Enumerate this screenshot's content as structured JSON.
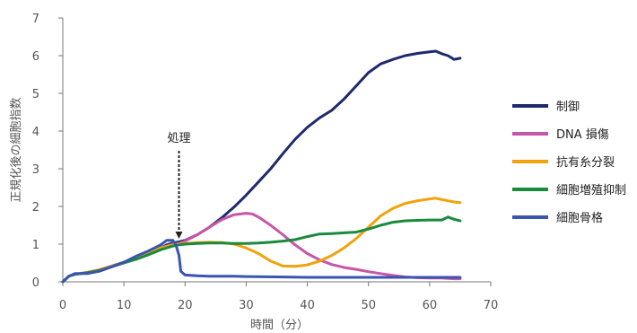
{
  "chart_data": {
    "type": "line",
    "title": "",
    "xlabel": "時間（分）",
    "ylabel": "正規化後の細胞指数",
    "xlim": [
      0,
      70
    ],
    "ylim": [
      0,
      7
    ],
    "xticks": [
      "0",
      "10",
      "20",
      "30",
      "40",
      "50",
      "60",
      "70"
    ],
    "yticks": [
      "0",
      "1",
      "2",
      "3",
      "4",
      "5",
      "6",
      "7"
    ],
    "grid": false,
    "legend_position": "right",
    "annotation": {
      "text": "処理",
      "x": 19
    },
    "series": [
      {
        "name": "制御",
        "color": "#1e2a6e",
        "x": [
          0,
          1,
          2,
          4,
          6,
          8,
          10,
          12,
          14,
          16,
          17,
          18,
          19,
          20,
          22,
          24,
          26,
          28,
          30,
          32,
          34,
          36,
          38,
          40,
          42,
          44,
          46,
          48,
          50,
          52,
          54,
          56,
          58,
          60,
          61,
          62,
          63,
          64,
          65
        ],
        "y": [
          0,
          0.15,
          0.2,
          0.25,
          0.32,
          0.42,
          0.52,
          0.65,
          0.78,
          0.9,
          0.98,
          1.03,
          1.06,
          1.1,
          1.25,
          1.45,
          1.7,
          1.98,
          2.3,
          2.65,
          3.0,
          3.4,
          3.78,
          4.1,
          4.35,
          4.55,
          4.85,
          5.2,
          5.55,
          5.78,
          5.9,
          6.0,
          6.06,
          6.1,
          6.12,
          6.05,
          6.0,
          5.9,
          5.93
        ]
      },
      {
        "name": "DNA 損傷",
        "color": "#c755a8",
        "x": [
          0,
          1,
          2,
          4,
          6,
          8,
          10,
          12,
          14,
          16,
          18,
          19,
          20,
          22,
          24,
          26,
          28,
          30,
          31,
          32,
          34,
          36,
          38,
          40,
          42,
          44,
          46,
          48,
          50,
          52,
          54,
          56,
          58,
          60,
          62,
          64,
          65
        ],
        "y": [
          0,
          0.15,
          0.2,
          0.25,
          0.32,
          0.42,
          0.52,
          0.65,
          0.78,
          0.9,
          1.0,
          1.02,
          1.08,
          1.25,
          1.45,
          1.65,
          1.78,
          1.82,
          1.8,
          1.72,
          1.5,
          1.25,
          0.98,
          0.75,
          0.58,
          0.46,
          0.38,
          0.33,
          0.27,
          0.22,
          0.17,
          0.13,
          0.11,
          0.1,
          0.1,
          0.08,
          0.08
        ]
      },
      {
        "name": "抗有糸分裂",
        "color": "#f0a30a",
        "x": [
          0,
          1,
          2,
          4,
          6,
          8,
          10,
          12,
          14,
          16,
          18,
          19,
          20,
          22,
          24,
          26,
          28,
          30,
          32,
          34,
          36,
          38,
          40,
          42,
          44,
          46,
          48,
          50,
          52,
          54,
          56,
          58,
          60,
          61,
          62,
          63,
          64,
          65
        ],
        "y": [
          0,
          0.15,
          0.2,
          0.25,
          0.32,
          0.42,
          0.52,
          0.65,
          0.78,
          0.9,
          0.98,
          1.0,
          1.02,
          1.04,
          1.05,
          1.04,
          1.0,
          0.9,
          0.75,
          0.55,
          0.42,
          0.41,
          0.45,
          0.55,
          0.7,
          0.9,
          1.15,
          1.45,
          1.75,
          1.95,
          2.08,
          2.15,
          2.2,
          2.22,
          2.18,
          2.15,
          2.12,
          2.1
        ]
      },
      {
        "name": "細胞増殖抑制",
        "color": "#1a8a3c",
        "x": [
          0,
          1,
          2,
          4,
          6,
          8,
          10,
          12,
          14,
          16,
          18,
          19,
          20,
          22,
          24,
          26,
          28,
          30,
          32,
          34,
          36,
          38,
          40,
          42,
          44,
          46,
          48,
          50,
          52,
          54,
          56,
          58,
          60,
          62,
          63,
          64,
          65
        ],
        "y": [
          0,
          0.15,
          0.2,
          0.24,
          0.3,
          0.4,
          0.5,
          0.6,
          0.72,
          0.85,
          0.95,
          0.98,
          1.0,
          1.02,
          1.03,
          1.03,
          1.02,
          1.02,
          1.03,
          1.05,
          1.08,
          1.12,
          1.2,
          1.27,
          1.28,
          1.3,
          1.32,
          1.4,
          1.5,
          1.58,
          1.62,
          1.63,
          1.64,
          1.64,
          1.72,
          1.66,
          1.62
        ]
      },
      {
        "name": "細胞骨格",
        "color": "#3a55b0",
        "x": [
          0,
          1,
          2,
          4,
          6,
          8,
          10,
          12,
          14,
          16,
          17,
          18,
          18.5,
          19,
          19.3,
          20,
          22,
          24,
          26,
          28,
          30,
          35,
          40,
          45,
          50,
          55,
          60,
          65
        ],
        "y": [
          0,
          0.15,
          0.22,
          0.22,
          0.28,
          0.4,
          0.52,
          0.68,
          0.82,
          0.98,
          1.1,
          1.1,
          0.98,
          0.7,
          0.28,
          0.18,
          0.16,
          0.15,
          0.15,
          0.15,
          0.14,
          0.13,
          0.12,
          0.12,
          0.12,
          0.12,
          0.12,
          0.12
        ]
      }
    ]
  }
}
